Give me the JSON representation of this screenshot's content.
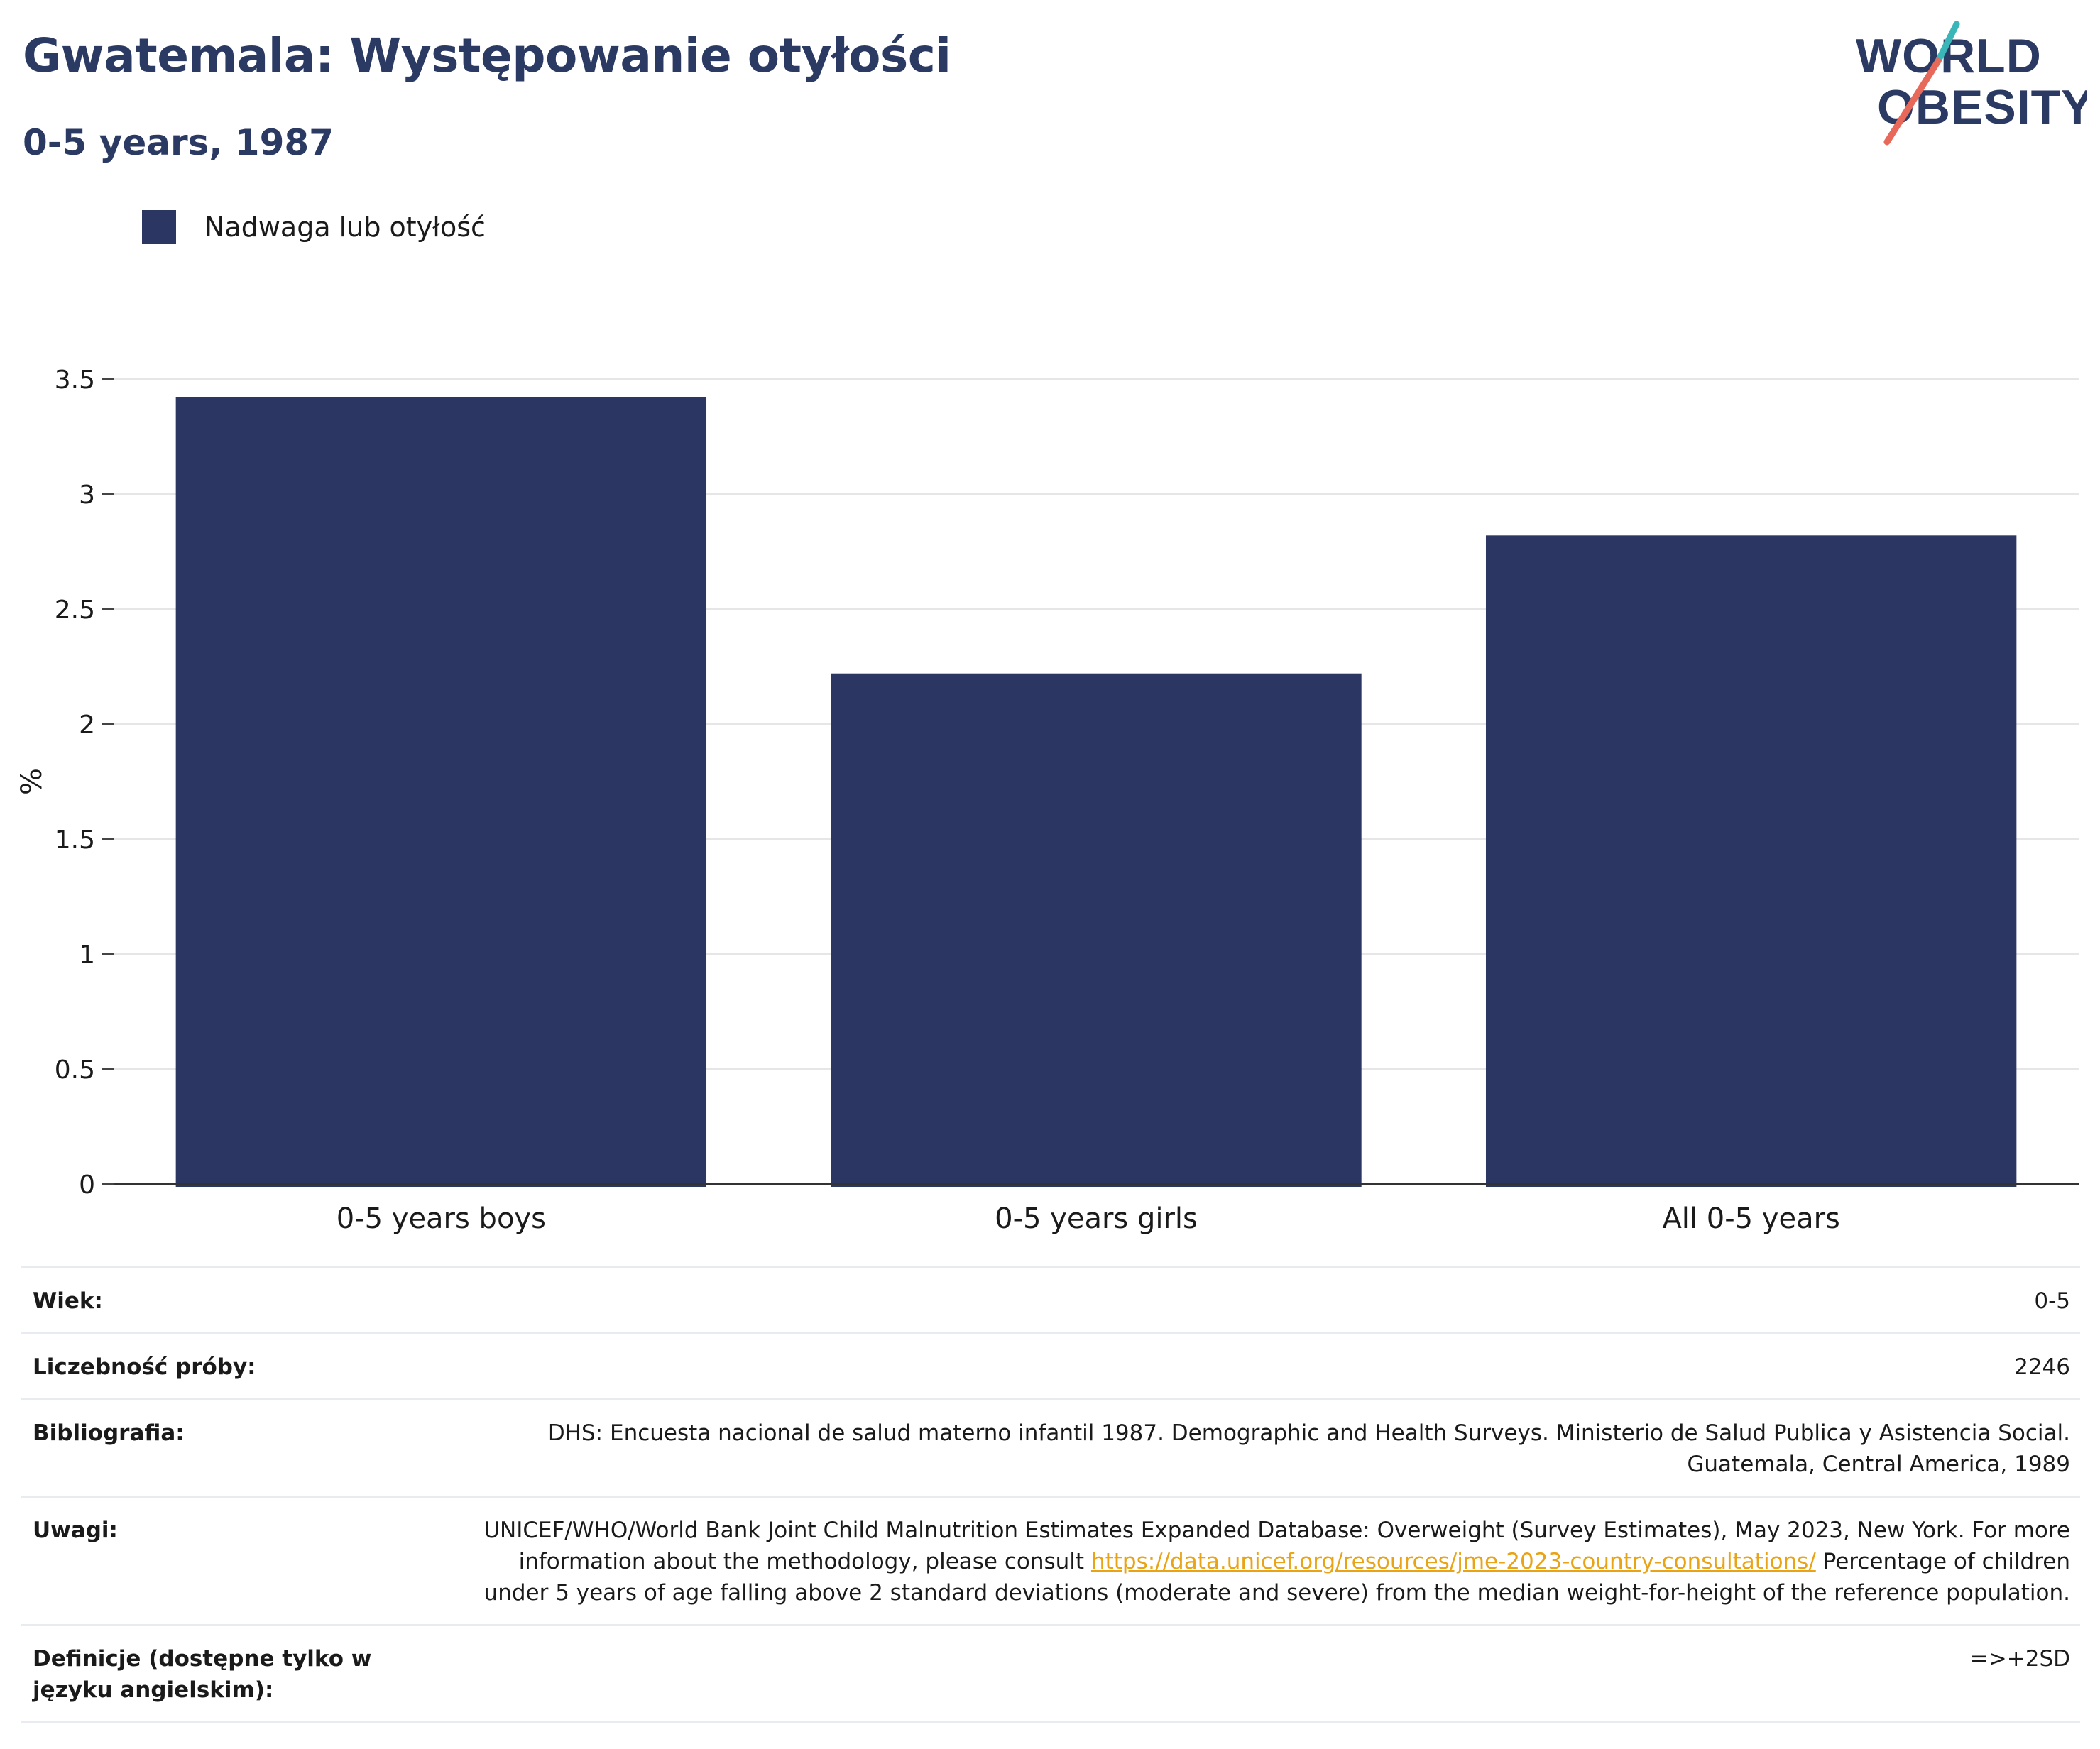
{
  "header": {
    "title": "Gwatemala: Występowanie otyłości",
    "subtitle": "0-5 years, 1987"
  },
  "logo": {
    "line1": "WORLD",
    "line2": "OBESITY"
  },
  "colors": {
    "bar": "#2b3663",
    "title": "#2b3a63",
    "grid": "#e6e6e6",
    "link": "#e8a317",
    "logo_teal": "#3ab5b8",
    "logo_red": "#e8685a"
  },
  "chart_data": {
    "type": "bar",
    "categories": [
      "0-5 years boys",
      "0-5 years girls",
      "All 0-5 years"
    ],
    "series": [
      {
        "name": "Nadwaga lub otyłość",
        "values": [
          3.42,
          2.22,
          2.82
        ]
      }
    ],
    "ylabel": "%",
    "ylim": [
      0,
      3.5
    ],
    "yticks": [
      0,
      0.5,
      1,
      1.5,
      2,
      2.5,
      3,
      3.5
    ],
    "ytick_labels": [
      "0",
      "0.5",
      "1",
      "1.5",
      "2",
      "2.5",
      "3",
      "3.5"
    ],
    "grid": true,
    "legend": "top-left"
  },
  "info": {
    "age_label": "Wiek:",
    "age_value": "0-5",
    "sample_label": "Liczebność próby:",
    "sample_value": "2246",
    "biblio_label": "Bibliografia:",
    "biblio_value": "DHS: Encuesta nacional de salud materno infantil 1987. Demographic and Health Surveys. Ministerio de Salud Publica y Asistencia Social. Guatemala, Central America, 1989",
    "notes_label": "Uwagi:",
    "notes_pre": "UNICEF/WHO/World Bank Joint Child Malnutrition Estimates Expanded Database: Overweight (Survey Estimates), May 2023, New York. For more information about the methodology, please consult ",
    "notes_link": "https://data.unicef.org/resources/jme-2023-country-consultations/",
    "notes_post": " Percentage of children under 5 years of age falling above 2 standard deviations (moderate and severe) from the median weight-for-height of the reference population.",
    "def_label": "Definicje (dostępne tylko w języku angielskim):",
    "def_value": "=>+2SD"
  }
}
